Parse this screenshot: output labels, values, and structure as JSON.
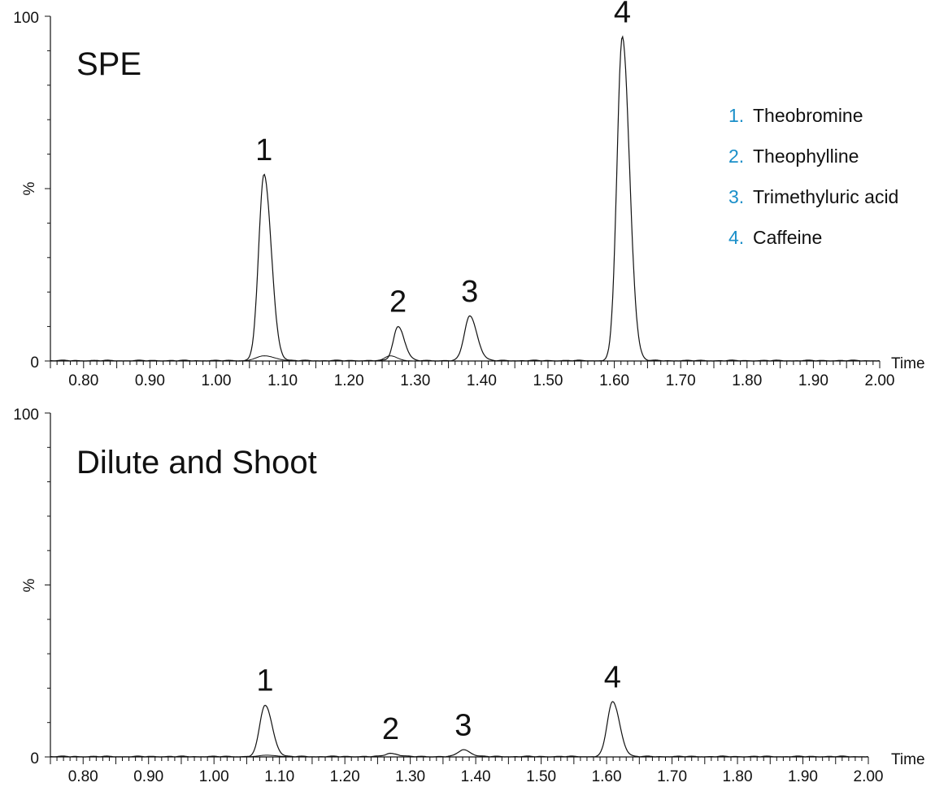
{
  "chart_data": [
    {
      "type": "line",
      "title": "SPE",
      "ylabel": "%",
      "xlabel": "Time",
      "xlim": [
        0.75,
        2.0
      ],
      "ylim": [
        0,
        100
      ],
      "yticks": [
        "0",
        "%",
        "100"
      ],
      "xticks": [
        "0.80",
        "0.90",
        "1.00",
        "1.10",
        "1.20",
        "1.30",
        "1.40",
        "1.50",
        "1.60",
        "1.70",
        "1.80",
        "1.90",
        "2.00"
      ],
      "peaks": [
        {
          "label": "1",
          "x": 1.072,
          "height": 54,
          "width": 0.008
        },
        {
          "label": "2",
          "x": 1.274,
          "height": 10,
          "width": 0.007
        },
        {
          "label": "3",
          "x": 1.382,
          "height": 13,
          "width": 0.008
        },
        {
          "label": "4",
          "x": 1.612,
          "height": 94,
          "width": 0.008
        }
      ],
      "minor_trace": [
        {
          "x": 1.072,
          "height": 1.5,
          "width": 0.012
        },
        {
          "x": 1.262,
          "height": 1.5,
          "width": 0.008
        }
      ],
      "legend": {
        "placement": "top-right",
        "accent": "#1a8fc9",
        "items": [
          {
            "num": "1.",
            "name": "Theobromine"
          },
          {
            "num": "2.",
            "name": "Theophylline"
          },
          {
            "num": "3.",
            "name": "Trimethyluric acid"
          },
          {
            "num": "4.",
            "name": "Caffeine"
          }
        ]
      },
      "grid": false,
      "line_color": "#111111"
    },
    {
      "type": "line",
      "title": "Dilute and Shoot",
      "ylabel": "%",
      "xlabel": "Time",
      "xlim": [
        0.75,
        2.0
      ],
      "ylim": [
        0,
        100
      ],
      "yticks": [
        "0",
        "%",
        "100"
      ],
      "xticks": [
        "0.80",
        "0.90",
        "1.00",
        "1.10",
        "1.20",
        "1.30",
        "1.40",
        "1.50",
        "1.60",
        "1.70",
        "1.80",
        "1.90",
        "2.00"
      ],
      "peaks": [
        {
          "label": "1",
          "x": 1.078,
          "height": 15,
          "width": 0.008
        },
        {
          "label": "2",
          "x": 1.27,
          "height": 1,
          "width": 0.008
        },
        {
          "label": "3",
          "x": 1.381,
          "height": 2,
          "width": 0.008
        },
        {
          "label": "4",
          "x": 1.609,
          "height": 16,
          "width": 0.008
        }
      ],
      "minor_trace": [
        {
          "x": 1.08,
          "height": 0.5,
          "width": 0.012
        }
      ],
      "grid": false,
      "line_color": "#111111"
    }
  ]
}
